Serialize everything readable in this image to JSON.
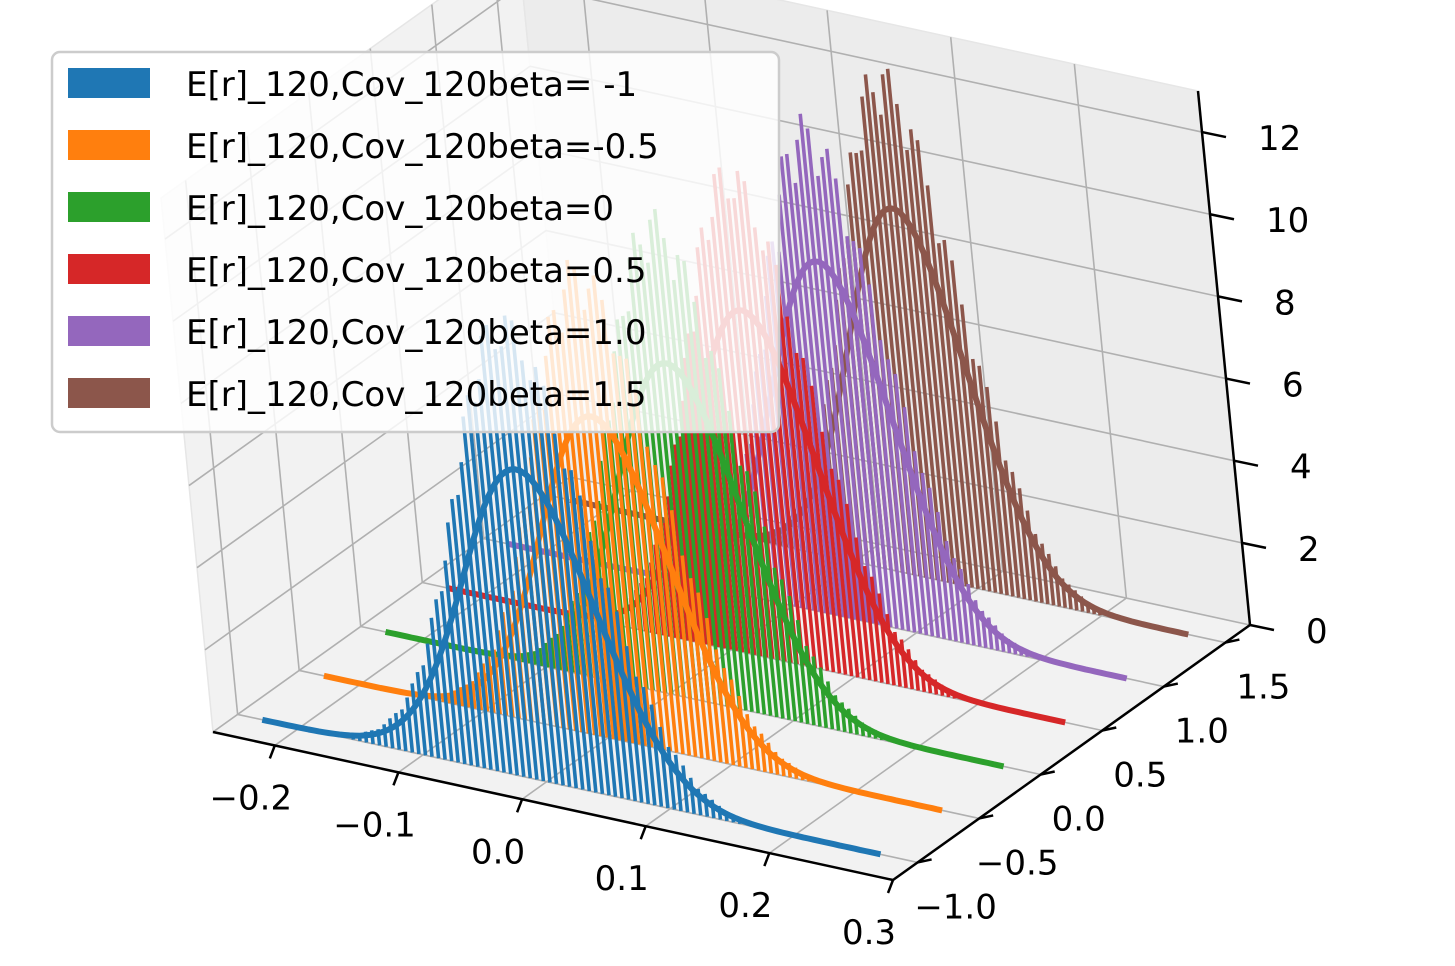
{
  "chart_data": {
    "type": "3d-histogram",
    "title": "",
    "xlabel": "",
    "ylabel": "",
    "zlabel": "",
    "x_ticks": [
      "−0.2",
      "−0.1",
      "0.0",
      "0.1",
      "0.2",
      "0.3"
    ],
    "x_tick_values": [
      -0.2,
      -0.1,
      0.0,
      0.1,
      0.2,
      0.3
    ],
    "y_ticks": [
      "−1.0",
      "−0.5",
      "0.0",
      "0.5",
      "1.0",
      "1.5"
    ],
    "y_tick_values": [
      -1.0,
      -0.5,
      0.0,
      0.5,
      1.0,
      1.5
    ],
    "z_ticks": [
      "0",
      "2",
      "4",
      "6",
      "8",
      "10",
      "12"
    ],
    "z_tick_values": [
      0,
      2,
      4,
      6,
      8,
      10,
      12
    ],
    "xlim": [
      -0.25,
      0.3
    ],
    "ylim": [
      -1.2,
      1.7
    ],
    "zlim": [
      0,
      13
    ],
    "grid": true,
    "legend_position": "top-left",
    "series": [
      {
        "name": "E[r]_120,Cov_120beta= -1",
        "beta": -1.0,
        "mean": 0.0,
        "std": 0.053,
        "peak": 7.6,
        "hist_peak": 11.5,
        "color": "#1f77b4"
      },
      {
        "name": "E[r]_120,Cov_120beta=-0.5",
        "beta": -0.5,
        "mean": 0.012,
        "std": 0.051,
        "peak": 7.9,
        "hist_peak": 11.8,
        "color": "#ff7f0e"
      },
      {
        "name": "E[r]_120,Cov_120beta=0",
        "beta": 0.0,
        "mean": 0.024,
        "std": 0.05,
        "peak": 8.2,
        "hist_peak": 12.0,
        "color": "#2ca02c"
      },
      {
        "name": "E[r]_120,Cov_120beta=0.5",
        "beta": 0.5,
        "mean": 0.036,
        "std": 0.049,
        "peak": 8.5,
        "hist_peak": 12.2,
        "color": "#d62728"
      },
      {
        "name": "E[r]_120,Cov_120beta=1.0",
        "beta": 1.0,
        "mean": 0.048,
        "std": 0.048,
        "peak": 8.7,
        "hist_peak": 12.3,
        "color": "#9467bd"
      },
      {
        "name": "E[r]_120,Cov_120beta=1.5",
        "beta": 1.5,
        "mean": 0.06,
        "std": 0.047,
        "peak": 9.0,
        "hist_peak": 12.6,
        "color": "#8c564b"
      }
    ]
  }
}
